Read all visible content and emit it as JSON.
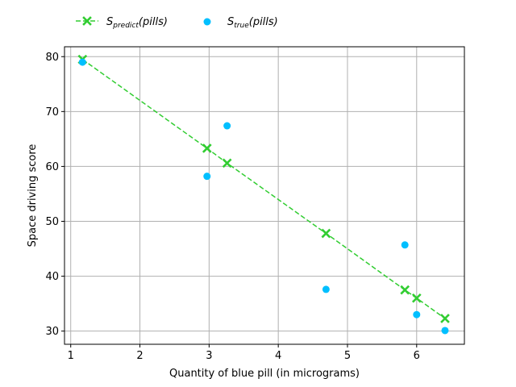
{
  "chart_data": {
    "type": "scatter",
    "xlabel": "Quantity of blue pill (in micrograms)",
    "ylabel": "Space driving score",
    "xlim": [
      0.91,
      6.69
    ],
    "ylim": [
      27.6,
      81.8
    ],
    "xticks": [
      1,
      2,
      3,
      4,
      5,
      6
    ],
    "yticks": [
      30,
      40,
      50,
      60,
      70,
      80
    ],
    "grid": true,
    "legend_position": "top, above plot",
    "series": [
      {
        "name_main": "S",
        "name_sub": "predict",
        "name_suffix": "(pills)",
        "style": "dashed line with x markers",
        "color": "#32CD32",
        "points": [
          {
            "x": 1.17,
            "y": 79.5
          },
          {
            "x": 2.97,
            "y": 63.3
          },
          {
            "x": 3.26,
            "y": 60.6
          },
          {
            "x": 4.69,
            "y": 47.8
          },
          {
            "x": 5.83,
            "y": 37.5
          },
          {
            "x": 6.0,
            "y": 36.0
          },
          {
            "x": 6.41,
            "y": 32.3
          }
        ]
      },
      {
        "name_main": "S",
        "name_sub": "true",
        "name_suffix": "(pills)",
        "style": "circle markers",
        "color": "#00BFFF",
        "points": [
          {
            "x": 1.17,
            "y": 79.0
          },
          {
            "x": 2.97,
            "y": 58.2
          },
          {
            "x": 3.26,
            "y": 67.4
          },
          {
            "x": 4.69,
            "y": 37.6
          },
          {
            "x": 5.83,
            "y": 45.7
          },
          {
            "x": 6.0,
            "y": 33.0
          },
          {
            "x": 6.41,
            "y": 30.1
          }
        ]
      }
    ]
  }
}
